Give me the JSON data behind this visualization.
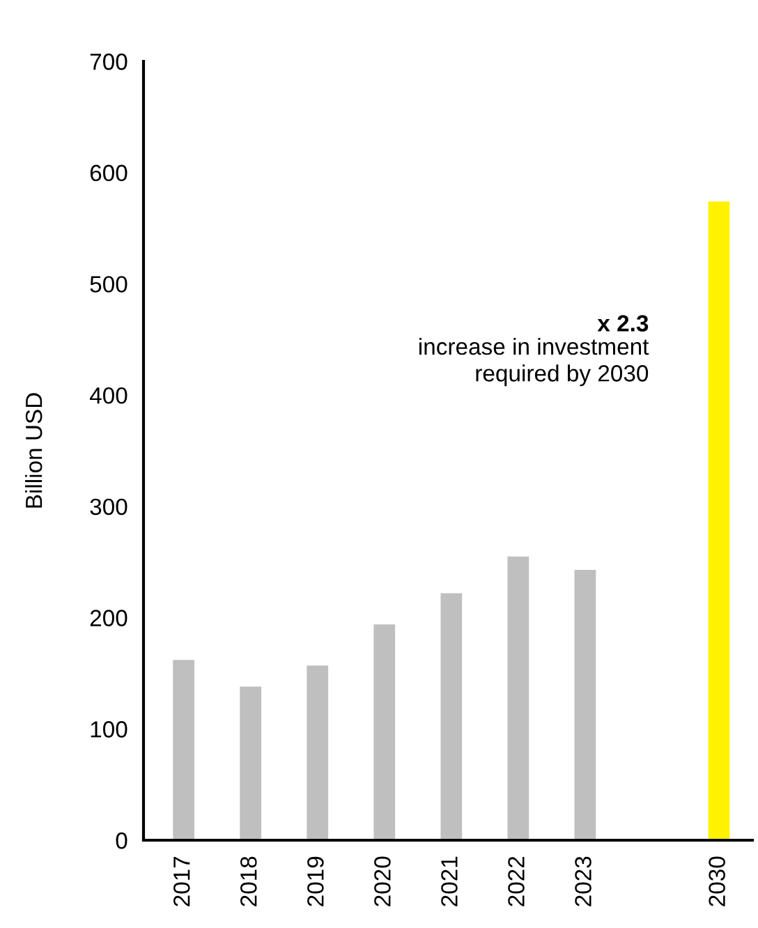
{
  "chart_data": {
    "type": "bar",
    "ylabel": "Billion USD",
    "categories": [
      "2017",
      "2018",
      "2019",
      "2020",
      "2021",
      "2022",
      "2023",
      null,
      "2030"
    ],
    "values": [
      162,
      138,
      157,
      194,
      222,
      255,
      243,
      null,
      574
    ],
    "colors": [
      "#bfbfbf",
      "#bfbfbf",
      "#bfbfbf",
      "#bfbfbf",
      "#bfbfbf",
      "#bfbfbf",
      "#bfbfbf",
      "#bfbfbf",
      "#fff200"
    ],
    "ylim": [
      0,
      700
    ],
    "yticks": [
      0,
      100,
      200,
      300,
      400,
      500,
      600,
      700
    ],
    "grid": false,
    "legend": false,
    "annotations": [
      "x 2.3",
      "increase in investment\nrequired by 2030"
    ]
  }
}
